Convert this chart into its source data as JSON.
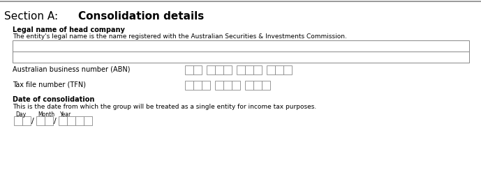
{
  "bg_color": "#ffffff",
  "top_line_color": "#888888",
  "section_normal": "Section A: ",
  "section_bold": "Consolidation details",
  "legal_label": "Legal name of head company",
  "legal_desc": "The entity's legal name is the name registered with the Australian Securities & Investments Commission.",
  "abn_label": "Australian business number (ABN)",
  "tfn_label": "Tax file number (TFN)",
  "date_label": "Date of consolidation",
  "date_desc": "This is the date from which the group will be treated as a single entity for income tax purposes.",
  "day_label": "Day",
  "month_label": "Month",
  "year_label": "Year",
  "box_border": "#888888",
  "title_fontsize": 11,
  "label_fontsize": 7,
  "desc_fontsize": 6.5,
  "small_fontsize": 5.5
}
